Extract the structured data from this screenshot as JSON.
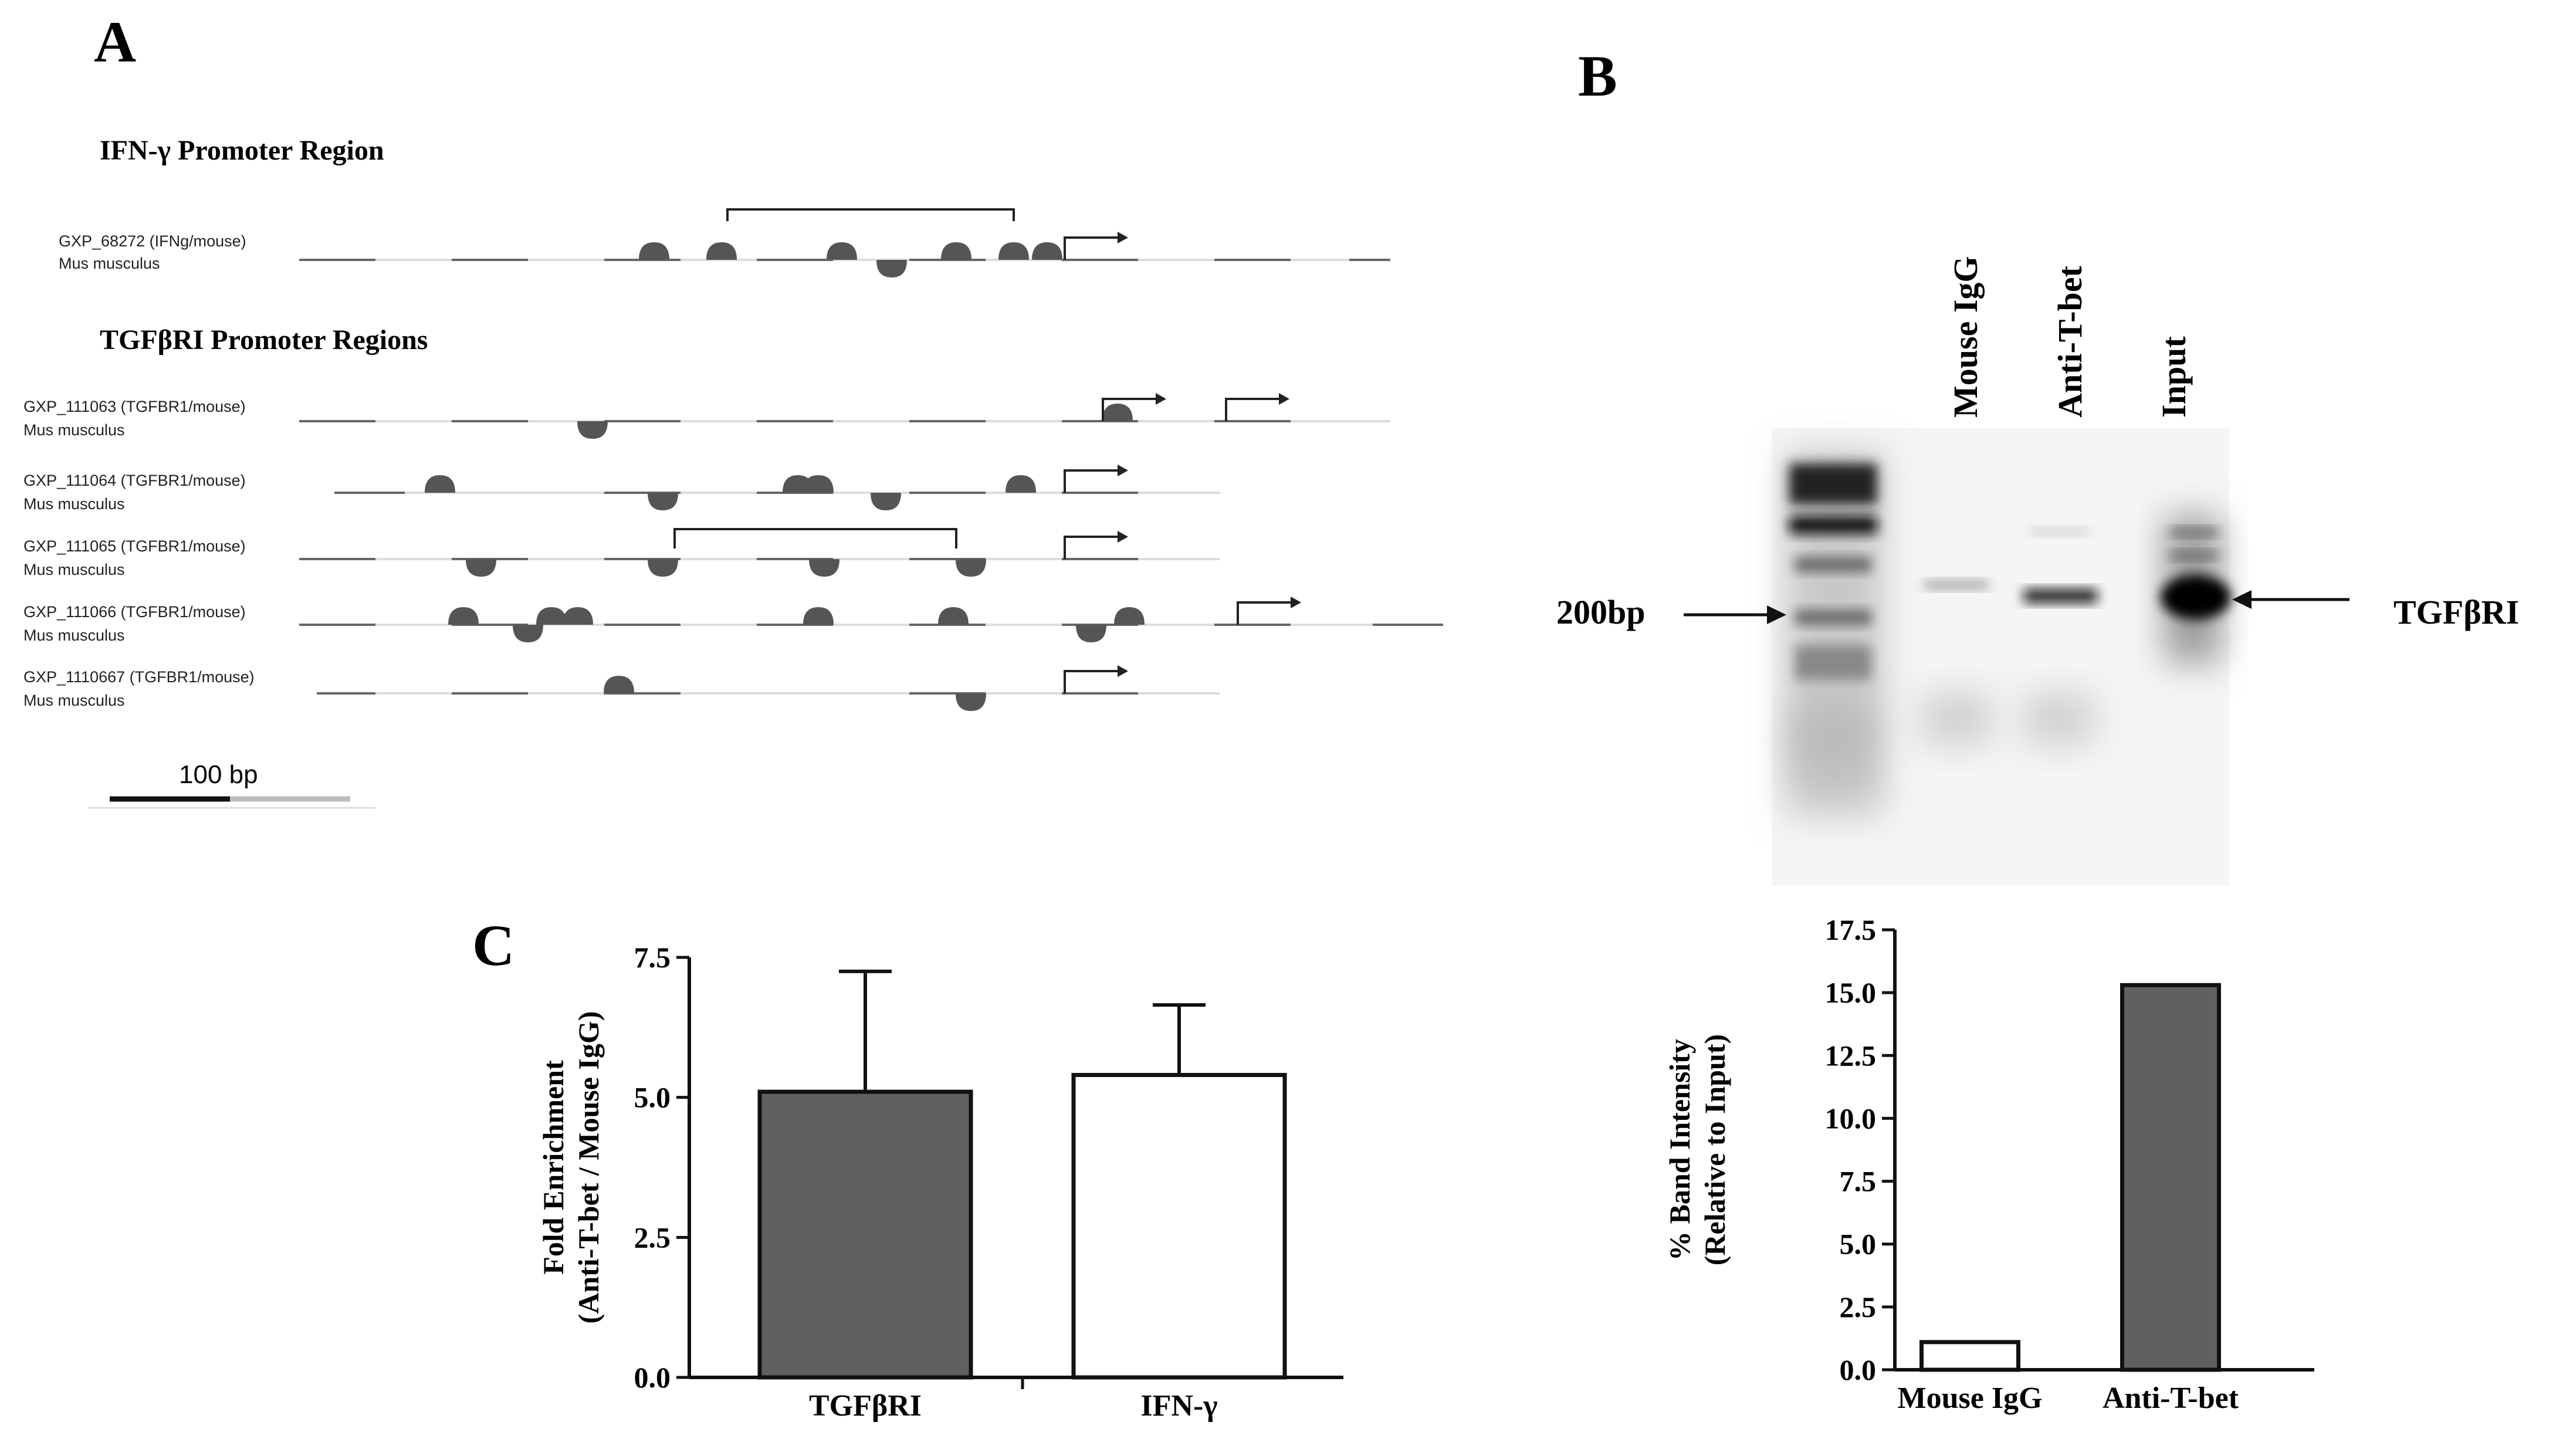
{
  "panel_labels": {
    "a": "A",
    "b": "B",
    "c": "C"
  },
  "panel_a": {
    "ifn_heading": "IFN-γ Promoter Region",
    "tgf_heading": "TGFβRI Promoter Regions",
    "scale_label": "100 bp",
    "tracks": [
      {
        "id": "GXP_68272 (IFNg/mouse)",
        "species": "Mus musculus"
      },
      {
        "id": "GXP_111063 (TGFBR1/mouse)",
        "species": "Mus musculus"
      },
      {
        "id": "GXP_111064 (TGFBR1/mouse)",
        "species": "Mus musculus"
      },
      {
        "id": "GXP_111065 (TGFBR1/mouse)",
        "species": "Mus musculus"
      },
      {
        "id": "GXP_111066 (TGFBR1/mouse)",
        "species": "Mus musculus"
      },
      {
        "id": "GXP_1110667 (TGFBR1/mouse)",
        "species": "Mus musculus"
      }
    ]
  },
  "panel_b": {
    "lanes": [
      "Mouse IgG",
      "Anti-T-bet",
      "Input"
    ],
    "left_marker": "200bp",
    "right_marker": "TGFβRI"
  },
  "chart_data": [
    {
      "type": "bar",
      "panel": "C",
      "categories": [
        "TGFβRI",
        "IFN-γ"
      ],
      "values": [
        5.1,
        5.4
      ],
      "error_upper": [
        7.25,
        6.65
      ],
      "bar_colors": [
        "#606060",
        "#ffffff"
      ],
      "ylabel_line1": "Fold Enrichment",
      "ylabel_line2": "(Anti-T-bet / Mouse IgG)",
      "ylim": [
        0,
        7.5
      ],
      "yticks": [
        "0.0",
        "2.5",
        "5.0",
        "7.5"
      ]
    },
    {
      "type": "bar",
      "panel": "B",
      "categories": [
        "Mouse IgG",
        "Anti-T-bet"
      ],
      "values": [
        1.1,
        15.3
      ],
      "bar_colors": [
        "#ffffff",
        "#606060"
      ],
      "ylabel_line1": "% Band Intensity",
      "ylabel_line2": "(Relative to Input)",
      "ylim": [
        0,
        17.5
      ],
      "yticks": [
        "0.0",
        "2.5",
        "5.0",
        "7.5",
        "10.0",
        "12.5",
        "15.0",
        "17.5"
      ]
    }
  ]
}
